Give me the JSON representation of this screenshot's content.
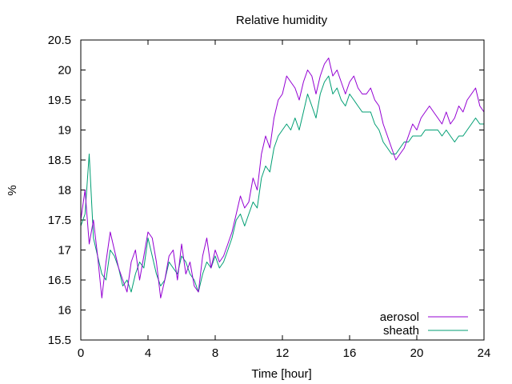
{
  "chart_data": {
    "type": "line",
    "title": "Relative humidity",
    "xlabel": "Time [hour]",
    "ylabel": "%",
    "xlim": [
      0,
      24
    ],
    "ylim": [
      15.5,
      20.5
    ],
    "xticks": [
      0,
      4,
      8,
      12,
      16,
      20,
      24
    ],
    "yticks": [
      15.5,
      16,
      16.5,
      17,
      17.5,
      18,
      18.5,
      19,
      19.5,
      20,
      20.5
    ],
    "grid": false,
    "legend_position": "bottom-right",
    "series": [
      {
        "name": "aerosol",
        "color": "#9400d3",
        "x": [
          0,
          0.25,
          0.5,
          0.75,
          1,
          1.25,
          1.5,
          1.75,
          2,
          2.25,
          2.5,
          2.75,
          3,
          3.25,
          3.5,
          3.75,
          4,
          4.25,
          4.5,
          4.75,
          5,
          5.25,
          5.5,
          5.75,
          6,
          6.25,
          6.5,
          6.75,
          7,
          7.25,
          7.5,
          7.75,
          8,
          8.25,
          8.5,
          8.75,
          9,
          9.25,
          9.5,
          9.75,
          10,
          10.25,
          10.5,
          10.75,
          11,
          11.25,
          11.5,
          11.75,
          12,
          12.25,
          12.5,
          12.75,
          13,
          13.25,
          13.5,
          13.75,
          14,
          14.25,
          14.5,
          14.75,
          15,
          15.25,
          15.5,
          15.75,
          16,
          16.25,
          16.5,
          16.75,
          17,
          17.25,
          17.5,
          17.75,
          18,
          18.25,
          18.5,
          18.75,
          19,
          19.25,
          19.5,
          19.75,
          20,
          20.25,
          20.5,
          20.75,
          21,
          21.25,
          21.5,
          21.75,
          22,
          22.25,
          22.5,
          22.75,
          23,
          23.25,
          23.5,
          23.75,
          24
        ],
        "values": [
          17.5,
          18.0,
          17.1,
          17.5,
          16.9,
          16.2,
          16.8,
          17.3,
          17.0,
          16.7,
          16.5,
          16.3,
          16.8,
          17.0,
          16.5,
          16.9,
          17.3,
          17.2,
          16.8,
          16.2,
          16.5,
          16.9,
          17.0,
          16.5,
          17.1,
          16.6,
          16.8,
          16.4,
          16.3,
          16.9,
          17.2,
          16.7,
          17.0,
          16.8,
          16.9,
          17.1,
          17.3,
          17.6,
          17.9,
          17.7,
          17.8,
          18.2,
          18.0,
          18.6,
          18.9,
          18.7,
          19.2,
          19.5,
          19.6,
          19.9,
          19.8,
          19.7,
          19.5,
          19.8,
          20.0,
          19.9,
          19.6,
          19.9,
          20.1,
          20.2,
          19.9,
          20.0,
          19.8,
          19.6,
          19.8,
          19.9,
          19.7,
          19.6,
          19.6,
          19.7,
          19.5,
          19.4,
          19.1,
          18.9,
          18.7,
          18.5,
          18.6,
          18.7,
          18.9,
          19.1,
          19.0,
          19.2,
          19.3,
          19.4,
          19.3,
          19.2,
          19.1,
          19.3,
          19.1,
          19.2,
          19.4,
          19.3,
          19.5,
          19.6,
          19.7,
          19.4,
          19.3
        ]
      },
      {
        "name": "sheath",
        "color": "#009e73",
        "x": [
          0,
          0.25,
          0.5,
          0.75,
          1,
          1.25,
          1.5,
          1.75,
          2,
          2.25,
          2.5,
          2.75,
          3,
          3.25,
          3.5,
          3.75,
          4,
          4.25,
          4.5,
          4.75,
          5,
          5.25,
          5.5,
          5.75,
          6,
          6.25,
          6.5,
          6.75,
          7,
          7.25,
          7.5,
          7.75,
          8,
          8.25,
          8.5,
          8.75,
          9,
          9.25,
          9.5,
          9.75,
          10,
          10.25,
          10.5,
          10.75,
          11,
          11.25,
          11.5,
          11.75,
          12,
          12.25,
          12.5,
          12.75,
          13,
          13.25,
          13.5,
          13.75,
          14,
          14.25,
          14.5,
          14.75,
          15,
          15.25,
          15.5,
          15.75,
          16,
          16.25,
          16.5,
          16.75,
          17,
          17.25,
          17.5,
          17.75,
          18,
          18.25,
          18.5,
          18.75,
          19,
          19.25,
          19.5,
          19.75,
          20,
          20.25,
          20.5,
          20.75,
          21,
          21.25,
          21.5,
          21.75,
          22,
          22.25,
          22.5,
          22.75,
          23,
          23.25,
          23.5,
          23.75,
          24
        ],
        "values": [
          17.4,
          17.6,
          18.6,
          17.2,
          16.9,
          16.6,
          16.5,
          17.0,
          16.9,
          16.7,
          16.4,
          16.5,
          16.3,
          16.6,
          16.8,
          16.7,
          17.2,
          16.9,
          16.6,
          16.4,
          16.5,
          16.8,
          16.7,
          16.6,
          16.9,
          16.8,
          16.6,
          16.5,
          16.3,
          16.6,
          16.8,
          16.7,
          16.9,
          16.7,
          16.8,
          17.0,
          17.2,
          17.5,
          17.6,
          17.4,
          17.6,
          17.8,
          17.7,
          18.2,
          18.4,
          18.3,
          18.7,
          18.9,
          19.0,
          19.1,
          19.0,
          19.2,
          19.0,
          19.3,
          19.6,
          19.4,
          19.2,
          19.6,
          19.8,
          19.9,
          19.6,
          19.7,
          19.5,
          19.4,
          19.6,
          19.5,
          19.4,
          19.3,
          19.3,
          19.3,
          19.1,
          19.0,
          18.8,
          18.7,
          18.6,
          18.6,
          18.7,
          18.8,
          18.8,
          18.9,
          18.9,
          18.9,
          19.0,
          19.0,
          19.0,
          19.0,
          18.9,
          19.0,
          18.9,
          18.8,
          18.9,
          18.9,
          19.0,
          19.1,
          19.2,
          19.1,
          19.1
        ]
      }
    ]
  }
}
